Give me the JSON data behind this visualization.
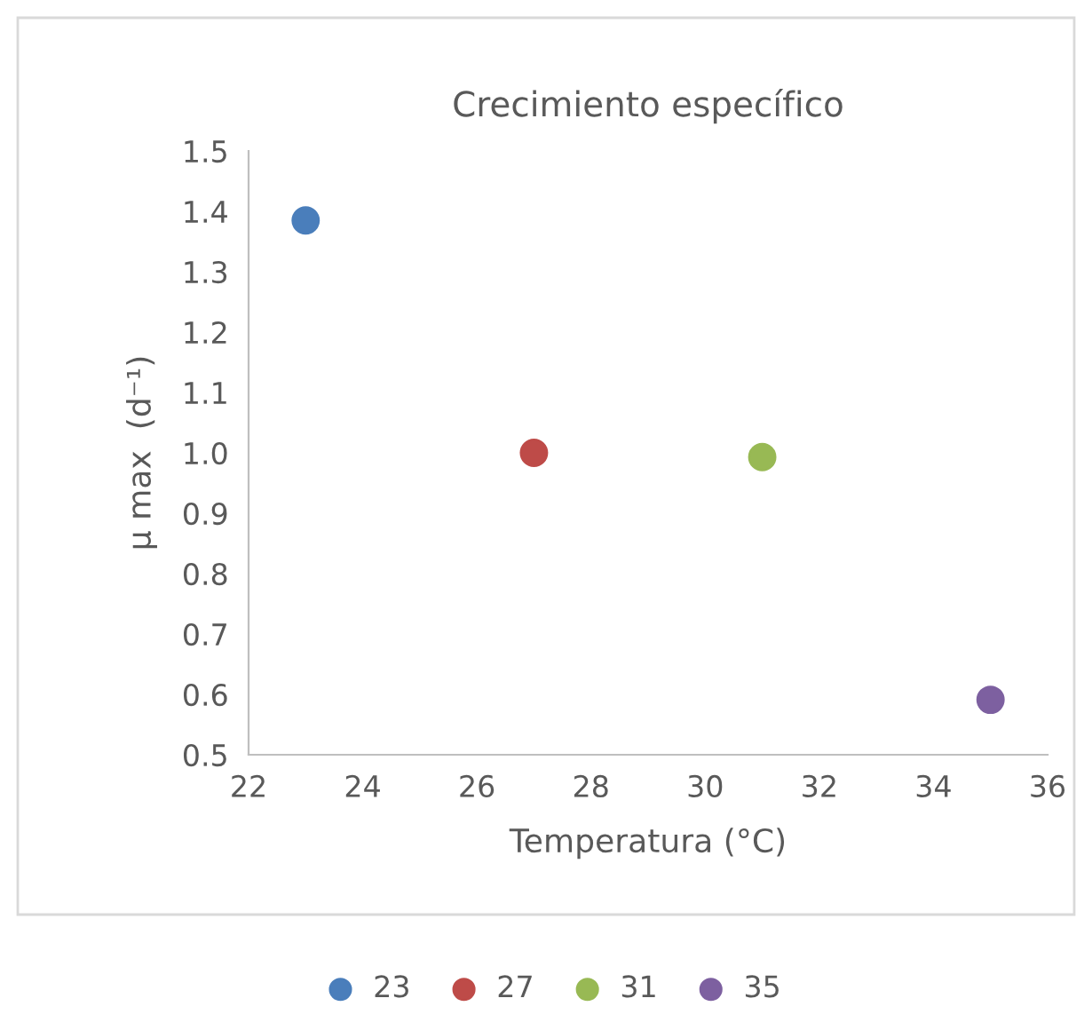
{
  "chart_data": {
    "type": "scatter",
    "title": "Crecimiento específico",
    "xlabel": "Temperatura (°C)",
    "ylabel": "μ max  (d⁻¹)",
    "series": [
      {
        "name": "23",
        "color": "#4a7ebb",
        "x": [
          23
        ],
        "values": [
          1.385
        ]
      },
      {
        "name": "27",
        "color": "#be4b48",
        "x": [
          27
        ],
        "values": [
          1.0
        ]
      },
      {
        "name": "31",
        "color": "#98b954",
        "x": [
          31
        ],
        "values": [
          0.993
        ]
      },
      {
        "name": "35",
        "color": "#7d60a0",
        "x": [
          35
        ],
        "values": [
          0.591
        ]
      }
    ],
    "xlim": [
      22,
      36
    ],
    "xticks": [
      22,
      24,
      26,
      28,
      30,
      32,
      34,
      36
    ],
    "ylim": [
      0.5,
      1.5
    ],
    "yticks": [
      0.5,
      0.6,
      0.7,
      0.8,
      0.9,
      {
        "value": 1,
        "label": "1.0"
      },
      1.1,
      1.2,
      1.3,
      1.4,
      1.5
    ],
    "marker": "circle",
    "legend": "bottom",
    "grid": false
  }
}
